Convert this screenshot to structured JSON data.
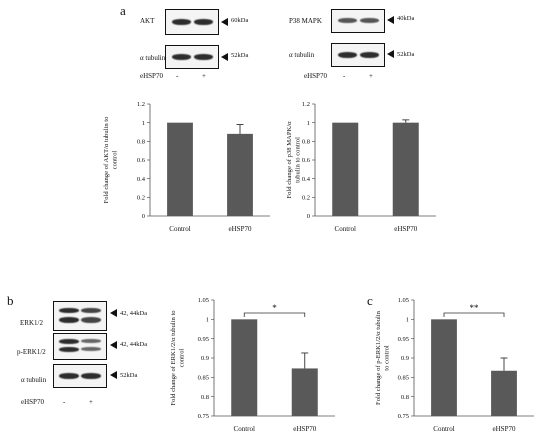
{
  "panels": {
    "a": "a",
    "b": "b",
    "c": "c"
  },
  "blots": {
    "akt": {
      "label": "AKT",
      "kda": "60kDa"
    },
    "akt_tubulin": {
      "label": "α tubulin",
      "kda": "52kDa"
    },
    "p38": {
      "label": "P38 MAPK",
      "kda": "40kDa"
    },
    "p38_tubulin": {
      "label": "α tubulin",
      "kda": "52kDa"
    },
    "erk": {
      "label": "ERK1/2",
      "kda": "42, 44kDa"
    },
    "perk": {
      "label": "p-ERK1/2",
      "kda": "42, 44kDa"
    },
    "erk_tubulin": {
      "label": "α tubulin",
      "kda": "52kDa"
    },
    "treatment_label": "eHSP70",
    "minus": "-",
    "plus": "+"
  },
  "chart_data": [
    {
      "type": "bar",
      "categories": [
        "Control",
        "eHSP70"
      ],
      "values": [
        1.0,
        0.88
      ],
      "errors": [
        0.0,
        0.1
      ],
      "ylabel": "Fold change of AKT/α tubulin to control",
      "ylabel_lines": [
        "Fold change of AKT/α tubulin to",
        "control"
      ],
      "ylim": [
        0,
        1.2
      ],
      "yticks": [
        "0",
        "0.2",
        "0.4",
        "0.6",
        "0.8",
        "1",
        "1.2"
      ],
      "ytick_values": [
        0,
        0.2,
        0.4,
        0.6,
        0.8,
        1,
        1.2
      ],
      "grid": false,
      "bar_color": "#595959"
    },
    {
      "type": "bar",
      "categories": [
        "Control",
        "eHSP70"
      ],
      "values": [
        1.0,
        1.0
      ],
      "errors": [
        0.0,
        0.03
      ],
      "ylabel": "Fold change of p38 MAPK/α tubulin to control",
      "ylabel_lines": [
        "Fold change of p38 MAPK/α",
        "tubulin to control"
      ],
      "ylim": [
        0,
        1.2
      ],
      "yticks": [
        "0",
        "0.2",
        "0.4",
        "0.6",
        "0.8",
        "1",
        "1.2"
      ],
      "ytick_values": [
        0,
        0.2,
        0.4,
        0.6,
        0.8,
        1,
        1.2
      ],
      "grid": false,
      "bar_color": "#595959"
    },
    {
      "type": "bar",
      "categories": [
        "Control",
        "eHSP70"
      ],
      "values": [
        1.0,
        0.873
      ],
      "errors": [
        0.0,
        0.04
      ],
      "ylabel": "Fold change of ERK1/2/α tubulin to control",
      "ylabel_lines": [
        "Fold change of ERK1/2/α tubulin to",
        "control"
      ],
      "ylim": [
        0.75,
        1.05
      ],
      "yticks": [
        "0.75",
        "0.8",
        "0.85",
        "0.9",
        "0.95",
        "1",
        "1.05"
      ],
      "ytick_values": [
        0.75,
        0.8,
        0.85,
        0.9,
        0.95,
        1,
        1.05
      ],
      "significance": "*",
      "grid": false,
      "bar_color": "#595959"
    },
    {
      "type": "bar",
      "categories": [
        "Control",
        "eHSP70"
      ],
      "values": [
        1.0,
        0.867
      ],
      "errors": [
        0.0,
        0.033
      ],
      "ylabel": "Fold change of p-ERK1/2/α tubulin to control",
      "ylabel_lines": [
        "Fold change of p-ERK1/2/α tubulin",
        "to control"
      ],
      "ylim": [
        0.75,
        1.05
      ],
      "yticks": [
        "0.75",
        "0.8",
        "0.85",
        "0.9",
        "0.95",
        "1",
        "1.05"
      ],
      "ytick_values": [
        0.75,
        0.8,
        0.85,
        0.9,
        0.95,
        1,
        1.05
      ],
      "significance": "**",
      "grid": false,
      "bar_color": "#595959"
    }
  ]
}
